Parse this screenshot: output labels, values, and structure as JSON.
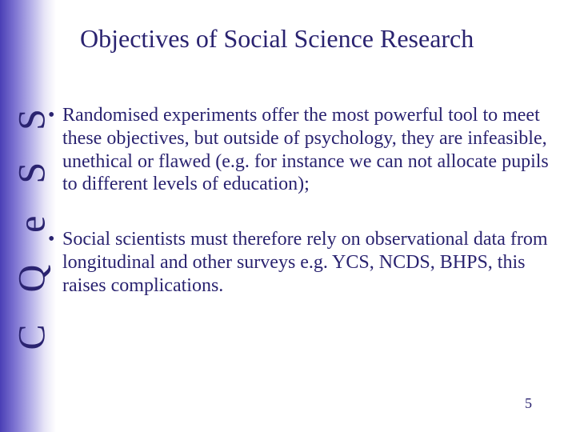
{
  "slide": {
    "background_color": "#ffffff",
    "text_color": "#2a2370",
    "title_fontsize": 32,
    "body_fontsize": 24,
    "vertical_label_fontsize": 48,
    "gradient_colors": [
      "#4a3fb5",
      "#7a70d0",
      "#b5b0e8",
      "#e8e6f7",
      "#ffffff"
    ],
    "vertical_label": "C Q e S S",
    "title": "Objectives of Social Science Research",
    "bullets": [
      "Randomised experiments offer the most powerful tool to meet these objectives, but outside of psychology, they are infeasible, unethical or flawed (e.g. for instance we can not allocate pupils to different levels of education);",
      "Social scientists must therefore rely on observational data from longitudinal and other surveys  e.g. YCS, NCDS, BHPS, this raises complications."
    ],
    "page_number": "5"
  }
}
